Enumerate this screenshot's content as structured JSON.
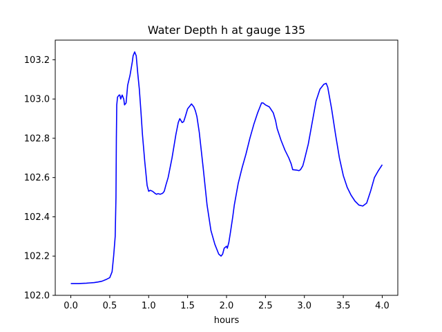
{
  "chart_data": {
    "type": "line",
    "title": "Water Depth h at gauge 135",
    "xlabel": "hours",
    "ylabel": "",
    "xlim": [
      -0.2,
      4.2
    ],
    "ylim": [
      102.0,
      103.3
    ],
    "xticks": [
      0.0,
      0.5,
      1.0,
      1.5,
      2.0,
      2.5,
      3.0,
      3.5,
      4.0
    ],
    "xtick_labels": [
      "0.0",
      "0.5",
      "1.0",
      "1.5",
      "2.0",
      "2.5",
      "3.0",
      "3.5",
      "4.0"
    ],
    "yticks": [
      102.0,
      102.2,
      102.4,
      102.6,
      102.8,
      103.0,
      103.2
    ],
    "ytick_labels": [
      "102.0",
      "102.2",
      "102.4",
      "102.6",
      "102.8",
      "103.0",
      "103.2"
    ],
    "grid": false,
    "series": [
      {
        "color": "#0000ff",
        "x": [
          0.0,
          0.1,
          0.2,
          0.3,
          0.35,
          0.4,
          0.45,
          0.5,
          0.53,
          0.55,
          0.57,
          0.58,
          0.585,
          0.59,
          0.6,
          0.62,
          0.63,
          0.64,
          0.66,
          0.68,
          0.69,
          0.71,
          0.73,
          0.76,
          0.79,
          0.8,
          0.82,
          0.84,
          0.86,
          0.88,
          0.9,
          0.92,
          0.95,
          0.98,
          1.0,
          1.02,
          1.05,
          1.08,
          1.1,
          1.12,
          1.15,
          1.18,
          1.2,
          1.22,
          1.25,
          1.3,
          1.35,
          1.38,
          1.4,
          1.43,
          1.45,
          1.47,
          1.5,
          1.55,
          1.58,
          1.6,
          1.62,
          1.65,
          1.7,
          1.75,
          1.8,
          1.85,
          1.9,
          1.93,
          1.95,
          1.97,
          2.0,
          2.01,
          2.03,
          2.05,
          2.08,
          2.1,
          2.15,
          2.2,
          2.25,
          2.3,
          2.35,
          2.4,
          2.43,
          2.45,
          2.47,
          2.5,
          2.55,
          2.6,
          2.63,
          2.65,
          2.7,
          2.75,
          2.8,
          2.83,
          2.85,
          2.9,
          2.93,
          2.95,
          2.98,
          3.0,
          3.05,
          3.1,
          3.15,
          3.2,
          3.25,
          3.28,
          3.3,
          3.35,
          3.4,
          3.45,
          3.5,
          3.55,
          3.6,
          3.65,
          3.7,
          3.75,
          3.8,
          3.85,
          3.9,
          3.95,
          4.0
        ],
        "values": [
          102.06,
          102.06,
          102.062,
          102.065,
          102.068,
          102.072,
          102.08,
          102.09,
          102.12,
          102.2,
          102.3,
          102.5,
          102.8,
          102.97,
          103.01,
          103.02,
          103.02,
          103.0,
          103.02,
          103.0,
          102.97,
          102.98,
          103.07,
          103.12,
          103.19,
          103.22,
          103.24,
          103.22,
          103.13,
          103.05,
          102.94,
          102.82,
          102.68,
          102.56,
          102.53,
          102.535,
          102.53,
          102.52,
          102.515,
          102.518,
          102.515,
          102.52,
          102.53,
          102.56,
          102.6,
          102.7,
          102.82,
          102.88,
          102.9,
          102.88,
          102.885,
          102.91,
          102.95,
          102.975,
          102.96,
          102.94,
          102.91,
          102.83,
          102.65,
          102.46,
          102.33,
          102.26,
          102.21,
          102.2,
          102.21,
          102.24,
          102.25,
          102.24,
          102.27,
          102.32,
          102.4,
          102.46,
          102.57,
          102.65,
          102.72,
          102.8,
          102.87,
          102.93,
          102.96,
          102.98,
          102.98,
          102.97,
          102.96,
          102.93,
          102.89,
          102.85,
          102.79,
          102.74,
          102.7,
          102.67,
          102.64,
          102.638,
          102.635,
          102.64,
          102.66,
          102.69,
          102.77,
          102.88,
          102.99,
          103.05,
          103.075,
          103.08,
          103.06,
          102.95,
          102.82,
          102.7,
          102.61,
          102.55,
          102.51,
          102.48,
          102.46,
          102.455,
          102.47,
          102.53,
          102.6,
          102.635,
          102.665
        ]
      }
    ]
  }
}
